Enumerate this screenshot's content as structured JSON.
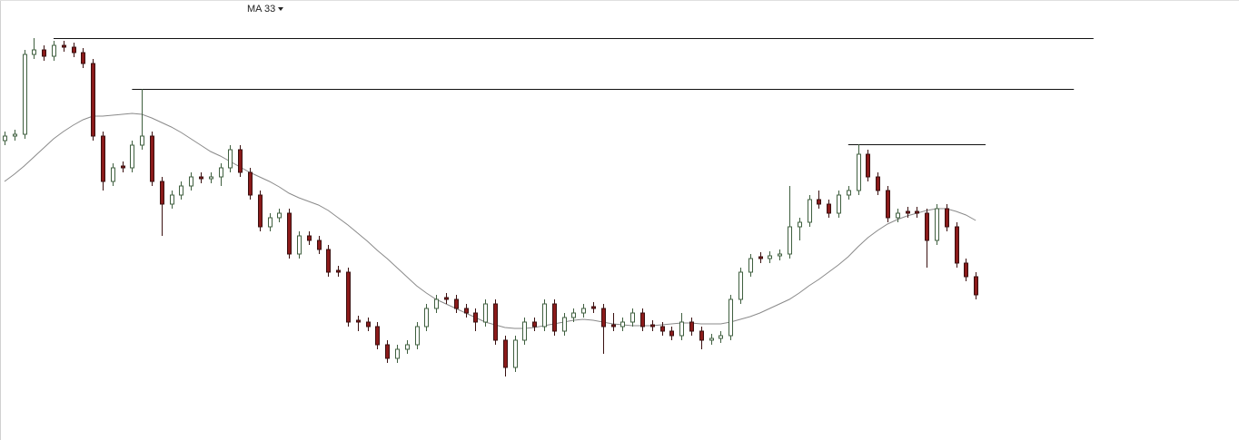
{
  "chart_data": {
    "type": "candlestick",
    "indicator_label": "MA 33",
    "up_color": "#ffffff",
    "up_stroke": "#3f5f3f",
    "down_color": "#8b1a1a",
    "down_stroke": "#3a1010",
    "ylim": [
      0,
      485
    ],
    "xlim": [
      -0.46,
      125.83
    ],
    "open": [
      330,
      335,
      337,
      425,
      430,
      423,
      435,
      433,
      427,
      415,
      335,
      285,
      302,
      300,
      325,
      335,
      285,
      260,
      270,
      280,
      290,
      288,
      290,
      300,
      320,
      295,
      270,
      235,
      245,
      250,
      205,
      225,
      220,
      210,
      187,
      185,
      132,
      130,
      125,
      105,
      90,
      100,
      105,
      125,
      145,
      157,
      155,
      145,
      140,
      130,
      150,
      110,
      80,
      110,
      130,
      125,
      150,
      120,
      135,
      140,
      147,
      145,
      127,
      125,
      130,
      140,
      127,
      125,
      120,
      115,
      130,
      120,
      110,
      112,
      115,
      155,
      185,
      202,
      200,
      203,
      205,
      235,
      240,
      265,
      260,
      250,
      270,
      275,
      315,
      290,
      275,
      245,
      252,
      252,
      250,
      220,
      255,
      235,
      195,
      180
    ],
    "high": [
      340,
      342,
      430,
      443,
      435,
      440,
      440,
      438,
      432,
      420,
      340,
      305,
      307,
      330,
      387,
      340,
      290,
      275,
      285,
      295,
      295,
      295,
      305,
      325,
      325,
      300,
      275,
      250,
      255,
      255,
      230,
      230,
      225,
      215,
      192,
      190,
      137,
      135,
      130,
      110,
      105,
      110,
      130,
      150,
      160,
      162,
      160,
      150,
      145,
      155,
      155,
      115,
      115,
      135,
      135,
      155,
      155,
      140,
      145,
      150,
      152,
      150,
      140,
      135,
      145,
      145,
      132,
      130,
      125,
      140,
      135,
      125,
      117,
      120,
      160,
      190,
      205,
      207,
      208,
      210,
      280,
      245,
      270,
      275,
      265,
      275,
      280,
      326,
      320,
      295,
      280,
      255,
      257,
      257,
      255,
      260,
      260,
      240,
      200,
      185
    ],
    "low": [
      325,
      330,
      332,
      420,
      418,
      418,
      428,
      422,
      410,
      330,
      275,
      280,
      295,
      295,
      320,
      280,
      225,
      255,
      265,
      275,
      283,
      283,
      280,
      295,
      290,
      265,
      230,
      230,
      240,
      200,
      200,
      215,
      205,
      180,
      180,
      125,
      120,
      120,
      100,
      85,
      85,
      95,
      100,
      120,
      140,
      150,
      140,
      135,
      120,
      125,
      105,
      70,
      75,
      105,
      120,
      120,
      115,
      115,
      130,
      135,
      140,
      95,
      120,
      120,
      125,
      120,
      120,
      115,
      110,
      110,
      115,
      100,
      105,
      107,
      110,
      150,
      180,
      195,
      195,
      198,
      200,
      220,
      235,
      255,
      245,
      245,
      265,
      270,
      285,
      270,
      240,
      240,
      245,
      245,
      190,
      215,
      230,
      190,
      175,
      155
    ],
    "close": [
      335,
      337,
      425,
      430,
      423,
      435,
      433,
      427,
      415,
      335,
      285,
      300,
      300,
      325,
      335,
      285,
      260,
      270,
      280,
      290,
      288,
      290,
      300,
      320,
      295,
      270,
      235,
      245,
      250,
      205,
      225,
      220,
      210,
      185,
      185,
      130,
      130,
      125,
      105,
      90,
      100,
      105,
      125,
      145,
      155,
      155,
      145,
      140,
      130,
      150,
      110,
      80,
      110,
      130,
      125,
      150,
      120,
      135,
      140,
      145,
      145,
      125,
      125,
      130,
      140,
      125,
      125,
      120,
      115,
      130,
      120,
      110,
      112,
      115,
      155,
      185,
      200,
      200,
      203,
      205,
      235,
      240,
      265,
      260,
      250,
      270,
      275,
      315,
      290,
      275,
      245,
      250,
      250,
      250,
      220,
      255,
      235,
      195,
      180,
      160
    ],
    "ma": {
      "color": "#8a8a8a",
      "values": [
        285,
        293,
        302,
        312,
        322,
        332,
        340,
        347,
        353,
        357,
        357,
        358,
        359,
        360,
        359,
        355,
        350,
        345,
        339,
        332,
        325,
        318,
        313,
        307,
        301,
        295,
        290,
        285,
        279,
        272,
        267,
        263,
        259,
        253,
        245,
        237,
        228,
        219,
        209,
        200,
        190,
        180,
        170,
        162,
        155,
        150,
        145,
        140,
        135,
        130,
        127,
        124,
        123,
        123,
        124,
        126,
        128,
        130,
        132,
        133,
        132,
        130,
        128,
        127,
        126,
        126,
        126,
        127,
        128,
        129,
        129,
        128,
        128,
        128,
        130,
        133,
        136,
        140,
        145,
        150,
        155,
        162,
        170,
        177,
        185,
        193,
        202,
        213,
        223,
        231,
        238,
        243,
        247,
        250,
        253,
        255,
        255,
        252,
        248,
        242
      ]
    },
    "levels": [
      {
        "value": 443,
        "start": 5,
        "end": 111
      },
      {
        "value": 387,
        "start": 13,
        "end": 109
      },
      {
        "value": 326,
        "start": 86,
        "end": 100
      }
    ],
    "level_color": "#111111"
  }
}
